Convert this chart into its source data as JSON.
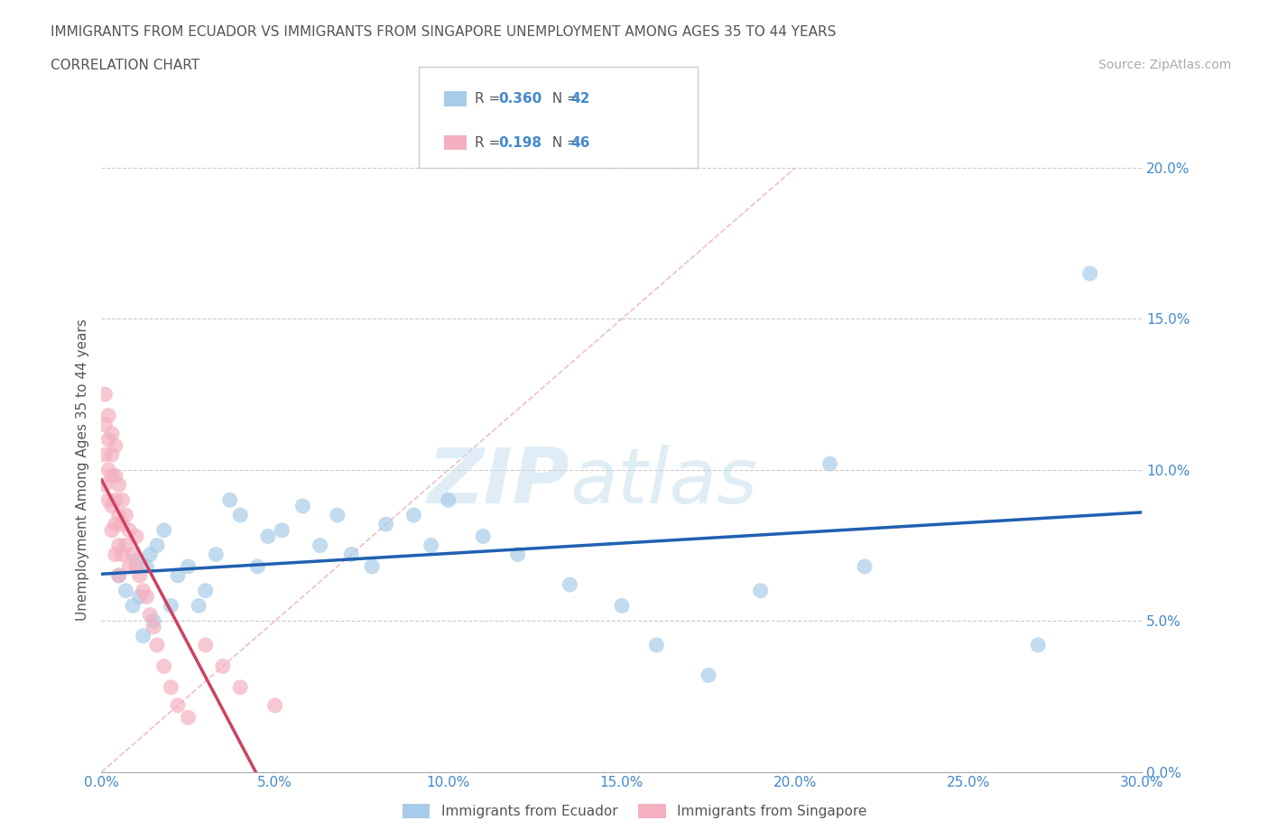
{
  "title_line1": "IMMIGRANTS FROM ECUADOR VS IMMIGRANTS FROM SINGAPORE UNEMPLOYMENT AMONG AGES 35 TO 44 YEARS",
  "title_line2": "CORRELATION CHART",
  "source": "Source: ZipAtlas.com",
  "ylabel": "Unemployment Among Ages 35 to 44 years",
  "xlim": [
    0.0,
    0.3
  ],
  "ylim": [
    0.0,
    0.2
  ],
  "xticks": [
    0.0,
    0.05,
    0.1,
    0.15,
    0.2,
    0.25,
    0.3
  ],
  "yticks": [
    0.0,
    0.05,
    0.1,
    0.15,
    0.2
  ],
  "xtick_labels": [
    "0.0%",
    "5.0%",
    "10.0%",
    "15.0%",
    "20.0%",
    "25.0%",
    "30.0%"
  ],
  "ytick_labels": [
    "0.0%",
    "5.0%",
    "10.0%",
    "15.0%",
    "20.0%"
  ],
  "ecuador_color": "#a8cce8",
  "singapore_color": "#f4b0c0",
  "ecuador_line_color": "#2060b0",
  "singapore_line_color": "#d04060",
  "diag_color": "#e8b0b8",
  "ecuador_R": 0.36,
  "ecuador_N": 42,
  "singapore_R": 0.198,
  "singapore_N": 46,
  "ecuador_label": "Immigrants from Ecuador",
  "singapore_label": "Immigrants from Singapore",
  "watermark_zip": "ZIP",
  "watermark_atlas": "atlas",
  "ecuador_x": [
    0.005,
    0.007,
    0.009,
    0.01,
    0.011,
    0.012,
    0.013,
    0.014,
    0.015,
    0.016,
    0.018,
    0.02,
    0.022,
    0.025,
    0.028,
    0.03,
    0.033,
    0.037,
    0.04,
    0.045,
    0.048,
    0.052,
    0.058,
    0.063,
    0.068,
    0.072,
    0.078,
    0.082,
    0.09,
    0.095,
    0.1,
    0.11,
    0.12,
    0.135,
    0.15,
    0.16,
    0.175,
    0.19,
    0.21,
    0.22,
    0.27,
    0.285
  ],
  "ecuador_y": [
    0.065,
    0.06,
    0.055,
    0.07,
    0.058,
    0.045,
    0.068,
    0.072,
    0.05,
    0.075,
    0.08,
    0.055,
    0.065,
    0.068,
    0.055,
    0.06,
    0.072,
    0.09,
    0.085,
    0.068,
    0.078,
    0.08,
    0.088,
    0.075,
    0.085,
    0.072,
    0.068,
    0.082,
    0.085,
    0.075,
    0.09,
    0.078,
    0.072,
    0.062,
    0.055,
    0.042,
    0.032,
    0.06,
    0.102,
    0.068,
    0.042,
    0.165
  ],
  "singapore_x": [
    0.001,
    0.001,
    0.001,
    0.001,
    0.002,
    0.002,
    0.002,
    0.002,
    0.003,
    0.003,
    0.003,
    0.003,
    0.003,
    0.004,
    0.004,
    0.004,
    0.004,
    0.004,
    0.005,
    0.005,
    0.005,
    0.005,
    0.006,
    0.006,
    0.006,
    0.007,
    0.007,
    0.008,
    0.008,
    0.009,
    0.01,
    0.01,
    0.011,
    0.012,
    0.013,
    0.014,
    0.015,
    0.016,
    0.018,
    0.02,
    0.022,
    0.025,
    0.03,
    0.035,
    0.04,
    0.05
  ],
  "singapore_y": [
    0.125,
    0.115,
    0.105,
    0.095,
    0.118,
    0.11,
    0.1,
    0.09,
    0.112,
    0.105,
    0.098,
    0.088,
    0.08,
    0.108,
    0.098,
    0.09,
    0.082,
    0.072,
    0.095,
    0.085,
    0.075,
    0.065,
    0.09,
    0.082,
    0.072,
    0.085,
    0.075,
    0.08,
    0.068,
    0.072,
    0.078,
    0.068,
    0.065,
    0.06,
    0.058,
    0.052,
    0.048,
    0.042,
    0.035,
    0.028,
    0.022,
    0.018,
    0.042,
    0.035,
    0.028,
    0.022
  ]
}
